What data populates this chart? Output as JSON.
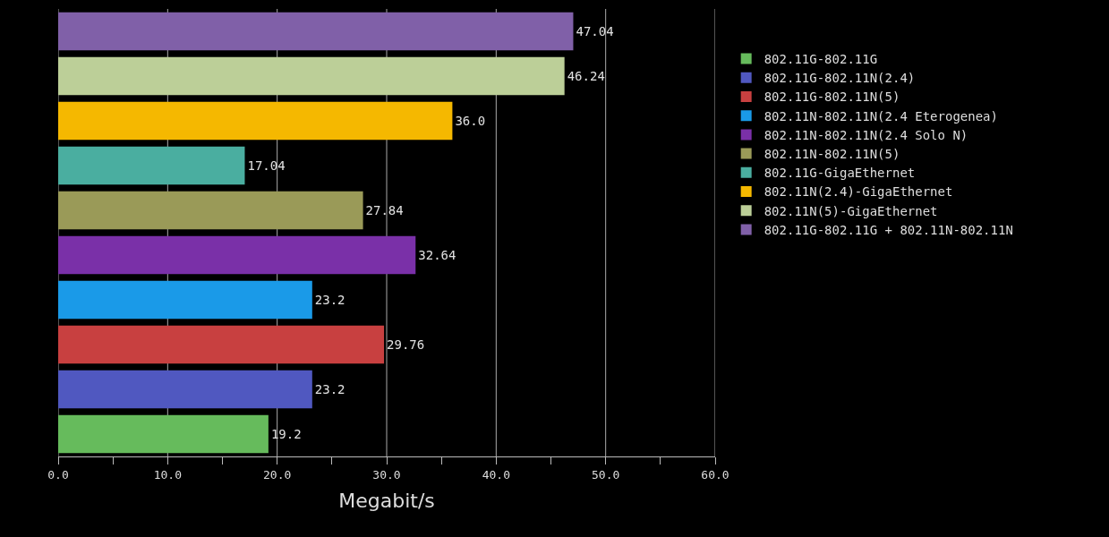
{
  "chart_data": {
    "type": "bar",
    "orientation": "horizontal",
    "xlabel": "Megabit/s",
    "categories": [
      null,
      null,
      null,
      null,
      null,
      null,
      null,
      null,
      null,
      null
    ],
    "series": [
      {
        "name": "802.11G-802.11G",
        "color": "#66bb5c",
        "values": [
          null,
          null,
          null,
          null,
          null,
          null,
          null,
          null,
          null,
          19.2
        ],
        "value_labels": [
          null,
          null,
          null,
          null,
          null,
          null,
          null,
          null,
          null,
          "19.2"
        ]
      },
      {
        "name": "802.11G-802.11N(2.4)",
        "color": "#5058c0",
        "values": [
          null,
          null,
          null,
          null,
          null,
          null,
          null,
          null,
          23.2,
          null
        ],
        "value_labels": [
          null,
          null,
          null,
          null,
          null,
          null,
          null,
          null,
          "23.2",
          null
        ]
      },
      {
        "name": "802.11G-802.11N(5)",
        "color": "#c84040",
        "values": [
          null,
          null,
          null,
          null,
          null,
          null,
          null,
          29.76,
          null,
          null
        ],
        "value_labels": [
          null,
          null,
          null,
          null,
          null,
          null,
          null,
          "29.76",
          null,
          null
        ]
      },
      {
        "name": "802.11N-802.11N(2.4 Eterogenea)",
        "color": "#1a9ae8",
        "values": [
          null,
          null,
          null,
          null,
          null,
          null,
          23.2,
          null,
          null,
          null
        ],
        "value_labels": [
          null,
          null,
          null,
          null,
          null,
          null,
          "23.2",
          null,
          null,
          null
        ]
      },
      {
        "name": "802.11N-802.11N(2.4 Solo N)",
        "color": "#7a30a8",
        "values": [
          null,
          null,
          null,
          null,
          null,
          32.64,
          null,
          null,
          null,
          null
        ],
        "value_labels": [
          null,
          null,
          null,
          null,
          null,
          "32.64",
          null,
          null,
          null,
          null
        ]
      },
      {
        "name": "802.11N-802.11N(5)",
        "color": "#9a9a58",
        "values": [
          null,
          null,
          null,
          null,
          27.84,
          null,
          null,
          null,
          null,
          null
        ],
        "value_labels": [
          null,
          null,
          null,
          null,
          "27.84",
          null,
          null,
          null,
          null,
          null
        ]
      },
      {
        "name": "802.11G-GigaEthernet",
        "color": "#4aaea0",
        "values": [
          null,
          null,
          null,
          17.04,
          null,
          null,
          null,
          null,
          null,
          null
        ],
        "value_labels": [
          null,
          null,
          null,
          "17.04",
          null,
          null,
          null,
          null,
          null,
          null
        ]
      },
      {
        "name": "802.11N(2.4)-GigaEthernet",
        "color": "#f5b800",
        "values": [
          null,
          null,
          36.0,
          null,
          null,
          null,
          null,
          null,
          null,
          null
        ],
        "value_labels": [
          null,
          null,
          "36.0",
          null,
          null,
          null,
          null,
          null,
          null,
          null
        ]
      },
      {
        "name": "802.11N(5)-GigaEthernet",
        "color": "#bccf98",
        "values": [
          null,
          46.24,
          null,
          null,
          null,
          null,
          null,
          null,
          null,
          null
        ],
        "value_labels": [
          null,
          "46.24",
          null,
          null,
          null,
          null,
          null,
          null,
          null,
          null
        ]
      },
      {
        "name": "802.11G-802.11G + 802.11N-802.11N",
        "color": "#8060a8",
        "values": [
          47.04,
          null,
          null,
          null,
          null,
          null,
          null,
          null,
          null,
          null
        ],
        "value_labels": [
          "47.04",
          null,
          null,
          null,
          null,
          null,
          null,
          null,
          null,
          null
        ]
      }
    ],
    "xlim": [
      0,
      60
    ],
    "xticks": [
      {
        "value": 0,
        "label": "0.0"
      },
      {
        "value": 5,
        "label": null
      },
      {
        "value": 10,
        "label": "10.0"
      },
      {
        "value": 15,
        "label": null
      },
      {
        "value": 20,
        "label": "20.0"
      },
      {
        "value": 25,
        "label": null
      },
      {
        "value": 30,
        "label": "30.0"
      },
      {
        "value": 35,
        "label": null
      },
      {
        "value": 40,
        "label": "40.0"
      },
      {
        "value": 45,
        "label": null
      },
      {
        "value": 50,
        "label": "50.0"
      },
      {
        "value": 55,
        "label": null
      },
      {
        "value": 60,
        "label": "60.0"
      }
    ],
    "grid": "x",
    "legend": "right"
  }
}
